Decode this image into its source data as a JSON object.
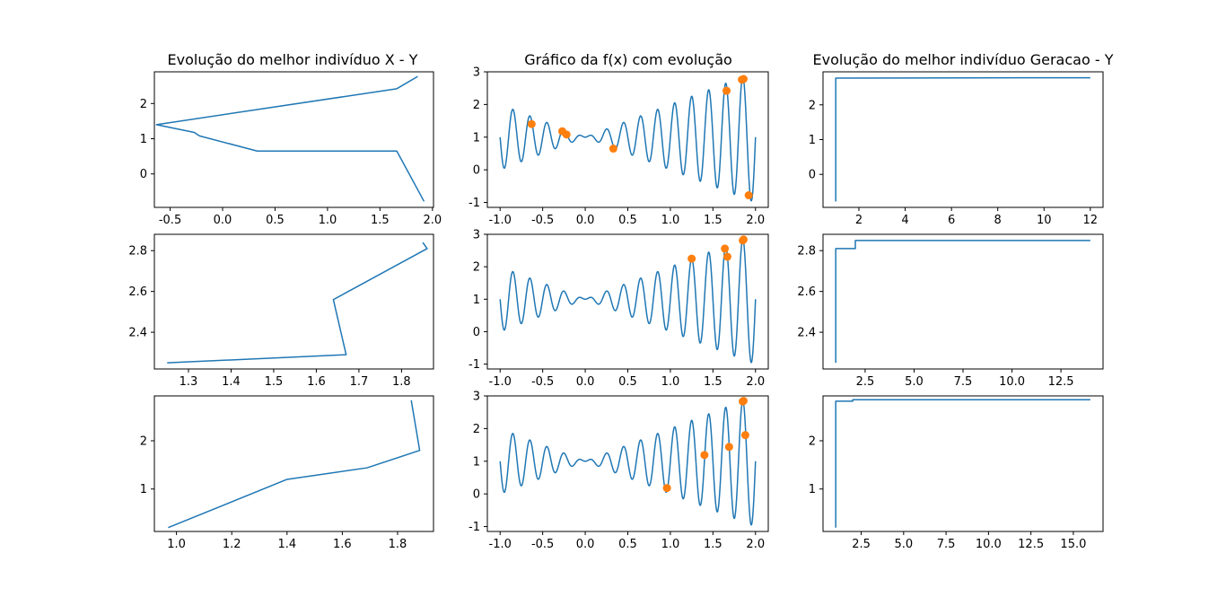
{
  "colors": {
    "line": "#1f77b4",
    "marker": "#ff7f0e"
  },
  "titles": {
    "xy": "Evolução do melhor indivíduo X - Y",
    "fx": "Gráfico da f(x) com evolução",
    "gen": "Evolução do melhor indivíduo Geracao - Y"
  },
  "chart_data": [
    {
      "id": "xy-1",
      "type": "line",
      "title": "Evolução do melhor indivíduo X - Y",
      "xlim": [
        -0.65,
        2.01
      ],
      "ylim": [
        -0.95,
        2.9
      ],
      "xticks": [
        "-0.5",
        "0.0",
        "0.5",
        "1.0",
        "1.5",
        "2.0"
      ],
      "yticks": [
        "0",
        "1",
        "2"
      ],
      "series": [
        {
          "x": [
            1.92,
            1.66,
            0.33,
            -0.22,
            -0.27,
            -0.63,
            1.66,
            1.86
          ],
          "y": [
            -0.78,
            0.65,
            0.65,
            1.08,
            1.18,
            1.4,
            2.42,
            2.77
          ]
        }
      ]
    },
    {
      "id": "fx-1",
      "type": "line",
      "title": "Gráfico da f(x) com evolução",
      "xlim": [
        -1.15,
        2.15
      ],
      "ylim": [
        -1.15,
        3.0
      ],
      "xticks": [
        "-1.0",
        "-0.5",
        "0.0",
        "0.5",
        "1.0",
        "1.5",
        "2.0"
      ],
      "yticks": [
        "-1",
        "0",
        "1",
        "2",
        "3"
      ],
      "markers": {
        "x": [
          -0.63,
          -0.27,
          -0.22,
          0.33,
          1.66,
          1.84,
          1.86,
          1.92
        ],
        "y": [
          1.4,
          1.18,
          1.08,
          0.65,
          2.42,
          2.76,
          2.78,
          -0.78
        ]
      }
    },
    {
      "id": "gen-1",
      "type": "line",
      "title": "Evolução do melhor indivíduo Geracao - Y",
      "xlim": [
        0.45,
        12.55
      ],
      "ylim": [
        -0.95,
        2.95
      ],
      "xticks": [
        "2",
        "4",
        "6",
        "8",
        "10",
        "12"
      ],
      "yticks": [
        "0",
        "1",
        "2"
      ],
      "series": [
        {
          "x": [
            1,
            1,
            12
          ],
          "y": [
            -0.78,
            2.77,
            2.78
          ]
        }
      ]
    },
    {
      "id": "xy-2",
      "type": "line",
      "xlim": [
        1.22,
        1.875
      ],
      "ylim": [
        2.22,
        2.88
      ],
      "xticks": [
        "1.3",
        "1.4",
        "1.5",
        "1.6",
        "1.7",
        "1.8"
      ],
      "yticks": [
        "2.4",
        "2.6",
        "2.8"
      ],
      "series": [
        {
          "x": [
            1.25,
            1.67,
            1.64,
            1.86,
            1.85
          ],
          "y": [
            2.25,
            2.29,
            2.56,
            2.81,
            2.84
          ]
        }
      ]
    },
    {
      "id": "fx-2",
      "type": "line",
      "xlim": [
        -1.15,
        2.15
      ],
      "ylim": [
        -1.15,
        3.0
      ],
      "xticks": [
        "-1.0",
        "-0.5",
        "0.0",
        "0.5",
        "1.0",
        "1.5",
        "2.0"
      ],
      "yticks": [
        "-1",
        "0",
        "1",
        "2",
        "3"
      ],
      "markers": {
        "x": [
          1.25,
          1.64,
          1.67,
          1.85,
          1.86
        ],
        "y": [
          2.25,
          2.56,
          2.31,
          2.81,
          2.84
        ]
      }
    },
    {
      "id": "gen-2",
      "type": "line",
      "xlim": [
        0.35,
        14.65
      ],
      "ylim": [
        2.22,
        2.88
      ],
      "xticks": [
        "2.5",
        "5.0",
        "7.5",
        "10.0",
        "12.5"
      ],
      "yticks": [
        "2.4",
        "2.6",
        "2.8"
      ],
      "series": [
        {
          "x": [
            1,
            1,
            2,
            2,
            14
          ],
          "y": [
            2.25,
            2.81,
            2.81,
            2.85,
            2.85
          ]
        }
      ]
    },
    {
      "id": "xy-3",
      "type": "line",
      "xlim": [
        0.92,
        1.93
      ],
      "ylim": [
        0.12,
        2.93
      ],
      "xticks": [
        "1.0",
        "1.2",
        "1.4",
        "1.6",
        "1.8"
      ],
      "yticks": [
        "1",
        "2"
      ],
      "series": [
        {
          "x": [
            0.97,
            1.4,
            1.69,
            1.88,
            1.85,
            1.85
          ],
          "y": [
            0.2,
            1.2,
            1.44,
            1.8,
            2.82,
            2.84
          ]
        }
      ]
    },
    {
      "id": "fx-3",
      "type": "line",
      "xlim": [
        -1.15,
        2.15
      ],
      "ylim": [
        -1.15,
        3.0
      ],
      "xticks": [
        "-1.0",
        "-0.5",
        "0.0",
        "0.5",
        "1.0",
        "1.5",
        "2.0"
      ],
      "yticks": [
        "-1",
        "0",
        "1",
        "2",
        "3"
      ],
      "markers": {
        "x": [
          0.96,
          1.4,
          1.69,
          1.88,
          1.85,
          1.86
        ],
        "y": [
          0.18,
          1.19,
          1.44,
          1.8,
          2.83,
          2.85
        ]
      }
    },
    {
      "id": "gen-3",
      "type": "line",
      "xlim": [
        0.25,
        16.75
      ],
      "ylim": [
        0.12,
        2.93
      ],
      "xticks": [
        "2.5",
        "5.0",
        "7.5",
        "10.0",
        "12.5",
        "15.0"
      ],
      "yticks": [
        "1",
        "2"
      ],
      "series": [
        {
          "x": [
            1,
            1,
            2,
            2,
            16
          ],
          "y": [
            0.2,
            2.82,
            2.82,
            2.85,
            2.85
          ]
        }
      ]
    }
  ]
}
